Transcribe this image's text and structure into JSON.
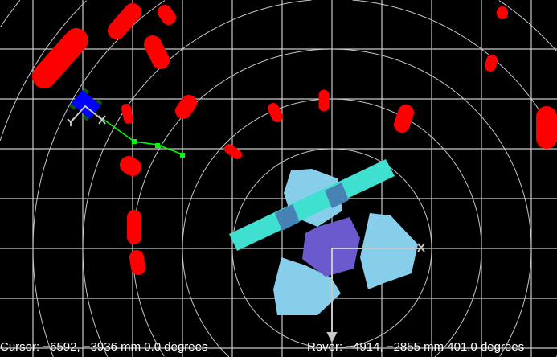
{
  "status": {
    "cursor": "Cursor: −6592, −3936 mm 0.0 degrees",
    "rover": "Rover: −4914, −2855 mm 401.0 degrees"
  },
  "colors": {
    "background": "#000000",
    "grid": "#c8c8c8",
    "obstacle": "#ff0000",
    "rover_body": "#6a5acd",
    "rover_panels": "#87ceeb",
    "solar_arm": "#40e0d0",
    "target_robot": "#0000ff",
    "path": "#00ff00"
  }
}
